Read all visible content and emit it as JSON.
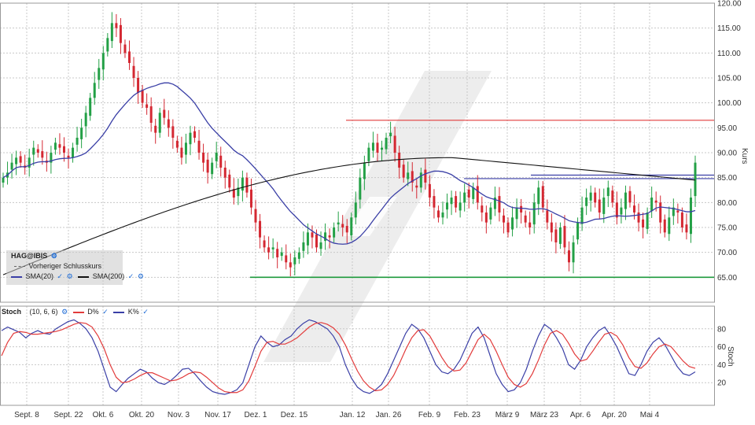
{
  "colors": {
    "up": "#23a046",
    "down": "#d42832",
    "sma20": "#3a3fa6",
    "sma200": "#111111",
    "resistance": "#e23b3b",
    "channel": "#3a3fa6",
    "support": "#1e9a3c",
    "k_line": "#3a3fa6",
    "d_line": "#e23b3b",
    "grid": "#c8c8c8",
    "watermark": "#e6e6e6"
  },
  "legend": {
    "symbol": "HAG@IBIS",
    "prev_close": "Vorheriger Schlusskurs",
    "sma20": "SMA(20)",
    "sma200": "SMA(200)"
  },
  "stoch_legend": {
    "name": "Stoch",
    "params": "(10, 6, 6)",
    "d_label": "D%",
    "k_label": "K%"
  },
  "chart_data": [
    {
      "type": "candlestick",
      "title": "",
      "ylabel": "Kurs",
      "ylim": [
        60,
        120
      ],
      "yticks": [
        "120.00",
        "115.00",
        "110.00",
        "105.00",
        "100.00",
        "95.00",
        "90.00",
        "85.00",
        "80.00",
        "75.00",
        "70.00",
        "65.00"
      ],
      "x_tick_labels": [
        "Sept. 8",
        "Sept. 22",
        "Okt. 6",
        "Okt. 20",
        "Nov. 3",
        "Nov. 17",
        "Dez. 1",
        "Dez. 15",
        "Jan. 12",
        "Jan. 26",
        "Feb. 9",
        "Feb. 23",
        "März 9",
        "März 23",
        "Apr. 6",
        "Apr. 20",
        "Mai 4"
      ],
      "levels": {
        "resistance": 96.5,
        "channel_top": 85.5,
        "channel_bottom": 84.8,
        "support": 65.0
      },
      "closes": [
        85,
        86,
        88,
        89,
        88,
        87,
        89,
        91,
        90,
        89,
        88,
        90,
        92,
        91,
        90,
        89,
        91,
        93,
        95,
        98,
        101,
        104,
        107,
        110,
        113,
        116,
        115,
        112,
        110,
        108,
        105,
        102,
        100,
        99,
        96,
        94,
        98,
        97,
        95,
        93,
        91,
        89,
        92,
        94,
        93,
        90,
        88,
        86,
        88,
        90,
        87,
        85,
        83,
        81,
        83,
        85,
        82,
        79,
        76,
        73,
        71,
        70,
        71,
        69,
        70,
        68,
        67,
        69,
        70,
        72,
        74,
        73,
        71,
        72,
        74,
        73,
        75,
        76,
        75,
        74,
        77,
        80,
        85,
        88,
        91,
        92,
        90,
        91,
        93,
        94,
        90,
        87,
        85,
        86,
        84,
        83,
        86,
        84,
        81,
        79,
        77,
        78,
        80,
        81,
        79,
        80,
        82,
        81,
        83,
        80,
        78,
        76,
        79,
        81,
        78,
        76,
        74,
        77,
        79,
        78,
        76,
        75,
        80,
        83,
        79,
        76,
        74,
        72,
        75,
        71,
        68,
        72,
        76,
        79,
        81,
        82,
        80,
        78,
        81,
        83,
        80,
        77,
        79,
        82,
        80,
        78,
        76,
        75,
        78,
        81,
        80,
        76,
        74,
        77,
        79,
        78,
        75,
        74,
        81,
        88
      ]
    },
    {
      "type": "line",
      "title": "",
      "ylabel": "Stoch",
      "ylim": [
        0,
        100
      ],
      "yticks": [
        "80",
        "60",
        "40",
        "20"
      ],
      "series": [
        {
          "name": "K%",
          "values": [
            78,
            82,
            79,
            76,
            70,
            75,
            78,
            75,
            74,
            80,
            84,
            88,
            90,
            86,
            80,
            70,
            55,
            35,
            15,
            10,
            18,
            25,
            30,
            35,
            32,
            25,
            20,
            18,
            22,
            28,
            35,
            36,
            30,
            22,
            15,
            10,
            8,
            7,
            9,
            12,
            20,
            40,
            60,
            72,
            65,
            60,
            62,
            68,
            72,
            80,
            86,
            90,
            88,
            84,
            80,
            72,
            60,
            40,
            25,
            15,
            10,
            8,
            12,
            18,
            30,
            45,
            60,
            75,
            85,
            80,
            70,
            55,
            40,
            32,
            30,
            35,
            45,
            60,
            75,
            82,
            70,
            50,
            30,
            18,
            10,
            12,
            20,
            35,
            55,
            72,
            85,
            80,
            70,
            58,
            40,
            35,
            45,
            60,
            70,
            78,
            82,
            72,
            60,
            45,
            30,
            28,
            40,
            55,
            65,
            70,
            62,
            50,
            38,
            30,
            28,
            32
          ]
        },
        {
          "name": "D%",
          "values": [
            50,
            65,
            75,
            77,
            76,
            74,
            74,
            75,
            76,
            77,
            79,
            82,
            85,
            87,
            86,
            82,
            72,
            58,
            40,
            26,
            20,
            21,
            24,
            28,
            31,
            31,
            28,
            25,
            22,
            23,
            26,
            30,
            32,
            31,
            26,
            20,
            14,
            10,
            9,
            9,
            12,
            22,
            38,
            55,
            65,
            66,
            63,
            63,
            66,
            70,
            76,
            82,
            86,
            87,
            85,
            81,
            74,
            62,
            47,
            33,
            22,
            15,
            11,
            12,
            18,
            28,
            42,
            57,
            70,
            78,
            79,
            72,
            60,
            48,
            38,
            33,
            34,
            42,
            55,
            68,
            74,
            68,
            55,
            40,
            26,
            18,
            15,
            19,
            30,
            45,
            62,
            75,
            78,
            74,
            64,
            52,
            44,
            46,
            55,
            65,
            74,
            76,
            72,
            62,
            48,
            38,
            36,
            42,
            52,
            60,
            63,
            60,
            52,
            44,
            38,
            36
          ]
        }
      ]
    }
  ]
}
